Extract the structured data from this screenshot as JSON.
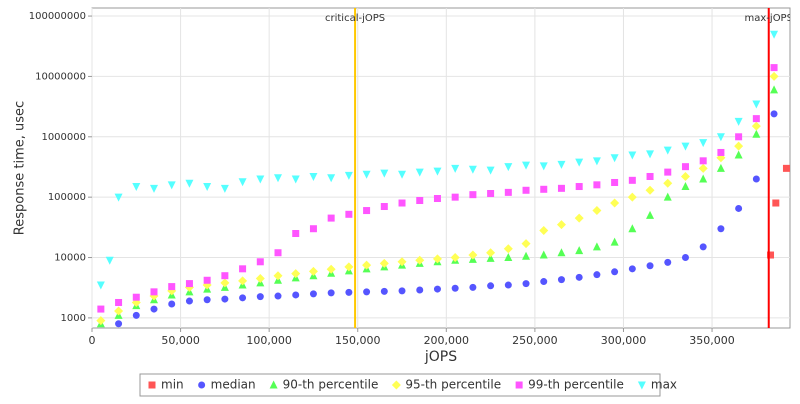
{
  "chart_data": {
    "type": "scatter",
    "yscale": "log",
    "grid": true,
    "legend": "bottom",
    "x_label": "jOPS",
    "y_label": "Response time, usec",
    "xlim": [
      0,
      394000
    ],
    "ylim": [
      680,
      136000000
    ],
    "xticks": [
      0,
      {
        "value": 50000,
        "label": "50,000"
      },
      {
        "value": 100000,
        "label": "100,000"
      },
      {
        "value": 150000,
        "label": "150,000"
      },
      {
        "value": 200000,
        "label": "200,000"
      },
      {
        "value": 250000,
        "label": "250,000"
      },
      {
        "value": 300000,
        "label": "300,000"
      },
      {
        "value": 350000,
        "label": "350,000"
      }
    ],
    "yticks": [
      1000,
      10000,
      100000,
      1000000,
      10000000,
      100000000
    ],
    "vlines": [
      {
        "label": "critical-jOPS",
        "x": 148500,
        "color": "#ffc800"
      },
      {
        "label": "max-jOPS",
        "x": 382000,
        "color": "#ff0000"
      }
    ],
    "series": [
      {
        "name": "min",
        "color": "#ff5555",
        "marker": "square",
        "x": [
          383000,
          386000,
          392000
        ],
        "values": [
          11000,
          80000,
          300000
        ]
      },
      {
        "name": "median",
        "color": "#5555ff",
        "marker": "circle",
        "x": [
          15000,
          25000,
          35000,
          45000,
          55000,
          65000,
          75000,
          85000,
          95000,
          105000,
          115000,
          125000,
          135000,
          145000,
          155000,
          165000,
          175000,
          185000,
          195000,
          205000,
          215000,
          225000,
          235000,
          245000,
          255000,
          265000,
          275000,
          285000,
          295000,
          305000,
          315000,
          325000,
          335000,
          345000,
          355000,
          365000,
          375000,
          385000
        ],
        "values": [
          800,
          1100,
          1400,
          1700,
          1900,
          2000,
          2050,
          2150,
          2250,
          2300,
          2400,
          2500,
          2600,
          2650,
          2700,
          2750,
          2800,
          2900,
          3000,
          3100,
          3200,
          3400,
          3500,
          3700,
          4000,
          4300,
          4700,
          5200,
          5800,
          6500,
          7300,
          8300,
          10000,
          15000,
          30000,
          65000,
          200000,
          2400000
        ]
      },
      {
        "name": "90-th percentile",
        "color": "#55ff55",
        "marker": "triangle",
        "x": [
          5000,
          15000,
          25000,
          35000,
          45000,
          55000,
          65000,
          75000,
          85000,
          95000,
          105000,
          115000,
          125000,
          135000,
          145000,
          155000,
          165000,
          175000,
          185000,
          195000,
          205000,
          215000,
          225000,
          235000,
          245000,
          255000,
          265000,
          275000,
          285000,
          295000,
          305000,
          315000,
          325000,
          335000,
          345000,
          355000,
          365000,
          375000,
          385000
        ],
        "values": [
          800,
          1100,
          1600,
          2000,
          2400,
          2700,
          3000,
          3200,
          3500,
          3800,
          4200,
          4600,
          5000,
          5500,
          6000,
          6500,
          7000,
          7500,
          8000,
          8500,
          9000,
          9300,
          9700,
          10000,
          10500,
          11000,
          12000,
          13000,
          15000,
          18000,
          30000,
          50000,
          100000,
          150000,
          200000,
          300000,
          500000,
          1100000,
          6000000
        ]
      },
      {
        "name": "95-th percentile",
        "color": "#ffff55",
        "marker": "diamond",
        "x": [
          5000,
          15000,
          25000,
          35000,
          45000,
          55000,
          65000,
          75000,
          85000,
          95000,
          105000,
          115000,
          125000,
          135000,
          145000,
          155000,
          165000,
          175000,
          185000,
          195000,
          205000,
          215000,
          225000,
          235000,
          245000,
          255000,
          265000,
          275000,
          285000,
          295000,
          305000,
          315000,
          325000,
          335000,
          345000,
          355000,
          365000,
          375000,
          385000
        ],
        "values": [
          900,
          1300,
          1800,
          2300,
          2800,
          3200,
          3500,
          3800,
          4100,
          4500,
          5000,
          5400,
          5900,
          6400,
          7000,
          7500,
          8000,
          8500,
          9000,
          9500,
          10000,
          11000,
          12000,
          14000,
          17000,
          28000,
          35000,
          45000,
          60000,
          80000,
          100000,
          130000,
          170000,
          220000,
          300000,
          450000,
          700000,
          1500000,
          10000000
        ]
      },
      {
        "name": "99-th percentile",
        "color": "#ff55ff",
        "marker": "square",
        "x": [
          5000,
          15000,
          25000,
          35000,
          45000,
          55000,
          65000,
          75000,
          85000,
          95000,
          105000,
          115000,
          125000,
          135000,
          145000,
          155000,
          165000,
          175000,
          185000,
          195000,
          205000,
          215000,
          225000,
          235000,
          245000,
          255000,
          265000,
          275000,
          285000,
          295000,
          305000,
          315000,
          325000,
          335000,
          345000,
          355000,
          365000,
          375000,
          385000
        ],
        "values": [
          1400,
          1800,
          2200,
          2700,
          3300,
          3700,
          4200,
          5000,
          6500,
          8500,
          12000,
          25000,
          30000,
          45000,
          52000,
          60000,
          70000,
          80000,
          88000,
          95000,
          100000,
          110000,
          115000,
          120000,
          130000,
          135000,
          140000,
          150000,
          160000,
          175000,
          190000,
          220000,
          260000,
          320000,
          400000,
          550000,
          1000000,
          2000000,
          14000000
        ]
      },
      {
        "name": "max",
        "color": "#55ffff",
        "marker": "triangle-down",
        "x": [
          5000,
          10000,
          15000,
          25000,
          35000,
          45000,
          55000,
          65000,
          75000,
          85000,
          95000,
          105000,
          115000,
          125000,
          135000,
          145000,
          155000,
          165000,
          175000,
          185000,
          195000,
          205000,
          215000,
          225000,
          235000,
          245000,
          255000,
          265000,
          275000,
          285000,
          295000,
          305000,
          315000,
          325000,
          335000,
          345000,
          355000,
          365000,
          375000,
          385000
        ],
        "values": [
          3500,
          9000,
          100000,
          150000,
          140000,
          160000,
          170000,
          150000,
          140000,
          180000,
          200000,
          210000,
          200000,
          220000,
          210000,
          230000,
          240000,
          250000,
          240000,
          260000,
          270000,
          300000,
          290000,
          280000,
          320000,
          340000,
          330000,
          350000,
          380000,
          400000,
          450000,
          500000,
          520000,
          600000,
          700000,
          800000,
          1000000,
          1800000,
          3500000,
          50000000
        ]
      }
    ]
  }
}
